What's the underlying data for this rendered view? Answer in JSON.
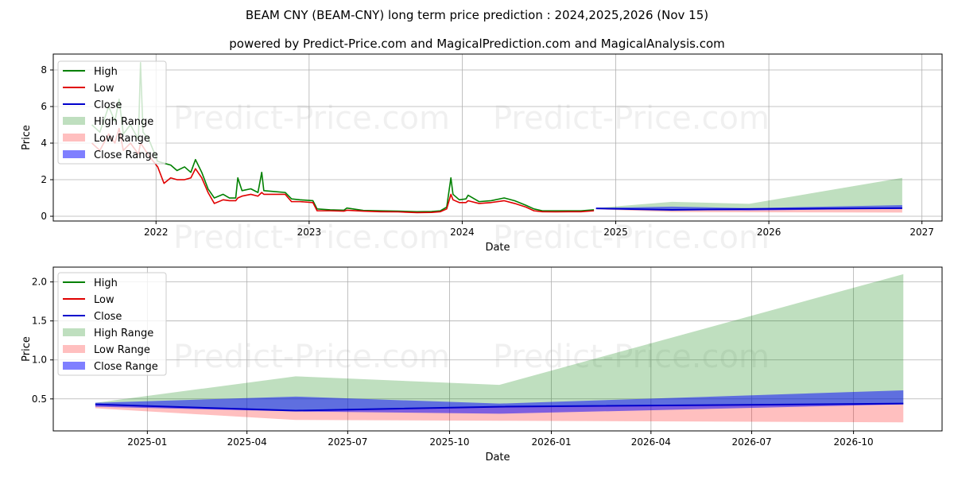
{
  "title": "BEAM CNY (BEAM-CNY) long term price prediction : 2024,2025,2026 (Nov 15)",
  "subtitle": "powered by Predict-Price.com and MagicalPrediction.com and MagicalAnalysis.com",
  "watermark": "Predict-Price.com",
  "colors": {
    "high": "#008000",
    "low": "#e00000",
    "close": "#0000cc",
    "high_range": "#a8d8a0",
    "low_range": "#ffb0b0",
    "close_range": "#6666ff",
    "grid": "#b0b0b0"
  },
  "legend": [
    "High",
    "Low",
    "Close",
    "High Range",
    "Low Range",
    "Close Range"
  ],
  "chart_data": [
    {
      "type": "line",
      "name": "long-term",
      "xlabel": "Date",
      "ylabel": "Price",
      "xlim": [
        "2021-05-01",
        "2027-02-18"
      ],
      "ylim": [
        -0.26,
        8.87
      ],
      "xticks": [
        "2022",
        "2023",
        "2024",
        "2025",
        "2026",
        "2027"
      ],
      "yticks": [
        0,
        2,
        4,
        6,
        8
      ],
      "grid": true,
      "legend_position": "top-left",
      "history": {
        "dates": [
          "2021-08-01",
          "2021-08-20",
          "2021-09-10",
          "2021-09-25",
          "2021-10-05",
          "2021-10-15",
          "2021-11-01",
          "2021-11-20",
          "2021-11-25",
          "2021-12-01",
          "2021-12-15",
          "2022-01-05",
          "2022-01-20",
          "2022-02-05",
          "2022-02-20",
          "2022-03-10",
          "2022-03-25",
          "2022-04-05",
          "2022-04-20",
          "2022-05-05",
          "2022-05-20",
          "2022-06-10",
          "2022-06-25",
          "2022-07-10",
          "2022-07-15",
          "2022-07-25",
          "2022-08-15",
          "2022-09-01",
          "2022-09-10",
          "2022-09-15",
          "2022-10-10",
          "2022-11-05",
          "2022-11-20",
          "2022-12-10",
          "2023-01-10",
          "2023-01-20",
          "2023-02-20",
          "2023-03-25",
          "2023-04-01",
          "2023-05-10",
          "2023-06-20",
          "2023-08-01",
          "2023-09-15",
          "2023-10-20",
          "2023-11-10",
          "2023-11-25",
          "2023-12-05",
          "2023-12-10",
          "2023-12-25",
          "2024-01-10",
          "2024-01-15",
          "2024-02-10",
          "2024-03-10",
          "2024-04-10",
          "2024-05-05",
          "2024-06-01",
          "2024-06-20",
          "2024-07-10",
          "2024-08-10",
          "2024-09-10",
          "2024-10-10",
          "2024-11-10"
        ],
        "high": [
          5.0,
          4.6,
          6.0,
          5.2,
          6.4,
          4.5,
          5.0,
          4.2,
          8.4,
          4.6,
          4.2,
          3.0,
          2.9,
          2.8,
          2.5,
          2.7,
          2.4,
          3.1,
          2.4,
          1.5,
          1.0,
          1.2,
          1.0,
          1.0,
          2.1,
          1.4,
          1.5,
          1.3,
          2.4,
          1.4,
          1.35,
          1.3,
          0.95,
          0.9,
          0.85,
          0.4,
          0.35,
          0.33,
          0.45,
          0.32,
          0.3,
          0.28,
          0.25,
          0.26,
          0.3,
          0.5,
          2.1,
          1.2,
          0.9,
          0.95,
          1.15,
          0.8,
          0.85,
          1.0,
          0.85,
          0.6,
          0.4,
          0.3,
          0.3,
          0.3,
          0.3,
          0.35
        ],
        "low": [
          4.0,
          3.6,
          4.5,
          4.0,
          4.8,
          3.6,
          4.0,
          3.4,
          4.0,
          3.8,
          3.3,
          2.7,
          1.8,
          2.1,
          2.0,
          2.0,
          2.1,
          2.6,
          2.1,
          1.3,
          0.7,
          0.9,
          0.85,
          0.85,
          1.0,
          1.1,
          1.2,
          1.1,
          1.3,
          1.2,
          1.2,
          1.2,
          0.8,
          0.8,
          0.75,
          0.3,
          0.3,
          0.28,
          0.33,
          0.28,
          0.25,
          0.24,
          0.2,
          0.21,
          0.25,
          0.4,
          1.2,
          0.9,
          0.75,
          0.75,
          0.85,
          0.7,
          0.75,
          0.85,
          0.7,
          0.5,
          0.3,
          0.25,
          0.24,
          0.25,
          0.25,
          0.3
        ]
      }
    },
    {
      "type": "line",
      "name": "forecast",
      "xlabel": "Date",
      "ylabel": "Price",
      "xlim": [
        "2024-10-08",
        "2026-12-20"
      ],
      "ylim": [
        0.09,
        2.19
      ],
      "xticks": [
        "2025-01",
        "2025-04",
        "2025-07",
        "2025-10",
        "2026-01",
        "2026-04",
        "2026-07",
        "2026-10"
      ],
      "yticks": [
        0.5,
        1.0,
        1.5,
        2.0
      ],
      "ytick_labels": [
        "0.5",
        "1.0",
        "1.5",
        "2.0"
      ],
      "grid": true,
      "legend_position": "top-left",
      "forecast": {
        "dates": [
          "2024-11-15",
          "2025-05-15",
          "2025-11-15",
          "2026-11-15"
        ],
        "close": [
          0.43,
          0.35,
          0.4,
          0.44
        ],
        "high_max": [
          0.45,
          0.79,
          0.68,
          2.1
        ],
        "close_max": [
          0.45,
          0.53,
          0.44,
          0.61
        ],
        "close_min": [
          0.4,
          0.34,
          0.31,
          0.43
        ],
        "low_min": [
          0.38,
          0.23,
          0.22,
          0.2
        ]
      }
    }
  ]
}
